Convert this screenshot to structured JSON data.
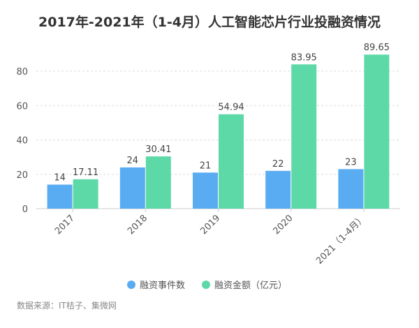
{
  "chart_data": {
    "type": "bar",
    "title": "2017年-2021年（1-4月）人工智能芯片行业投融资情况",
    "categories": [
      "2017",
      "2018",
      "2019",
      "2020",
      "2021（1-4月）"
    ],
    "series": [
      {
        "name": "融资事件数",
        "values": [
          14,
          24,
          21,
          22,
          23
        ],
        "color": "#5aacf2"
      },
      {
        "name": "融资金额（亿元）",
        "values": [
          17.11,
          30.41,
          54.94,
          83.95,
          89.65
        ],
        "color": "#5dd9a8"
      }
    ],
    "value_labels": [
      [
        "14",
        "24",
        "21",
        "22",
        "23"
      ],
      [
        "17.11",
        "30.41",
        "54.94",
        "83.95",
        "89.65"
      ]
    ],
    "xlabel": "",
    "ylabel": "",
    "ylim": [
      0,
      90
    ],
    "yticks": [
      "0",
      "20",
      "40",
      "60",
      "80"
    ],
    "grid": true,
    "legend_position": "bottom-center",
    "source": "数据来源：IT桔子、集微网"
  }
}
